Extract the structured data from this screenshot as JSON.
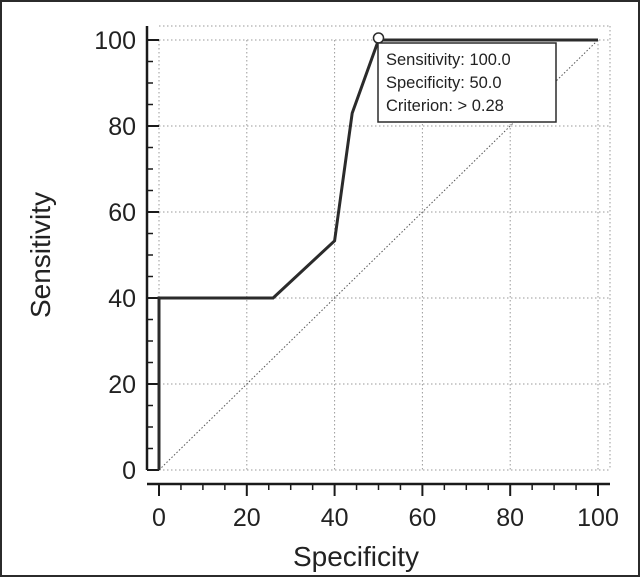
{
  "chart_data": {
    "type": "line",
    "xlabel": "Specificity",
    "ylabel": "Sensitivity",
    "xlim": [
      0,
      100
    ],
    "ylim": [
      0,
      100
    ],
    "x_ticks": [
      0,
      20,
      40,
      60,
      80,
      100
    ],
    "y_ticks": [
      0,
      20,
      40,
      60,
      80,
      100
    ],
    "grid": true,
    "series": [
      {
        "points": [
          {
            "x": 0,
            "y": 0
          },
          {
            "x": 0,
            "y": 40
          },
          {
            "x": 26,
            "y": 40
          },
          {
            "x": 40,
            "y": 53.3
          },
          {
            "x": 44,
            "y": 83
          },
          {
            "x": 50,
            "y": 100
          },
          {
            "x": 100,
            "y": 100
          }
        ]
      }
    ],
    "reference_line": {
      "from": {
        "x": 0,
        "y": 0
      },
      "to": {
        "x": 100,
        "y": 100
      },
      "style": "dotted"
    },
    "highlight_point": {
      "x": 50,
      "y": 100
    },
    "tooltip": {
      "lines": [
        "Sensitivity: 100.0",
        "Specificity: 50.0",
        "Criterion: > 0.28"
      ]
    },
    "colors": {
      "curve": "#2b2b2b",
      "grid": "#9a9a9a",
      "axis": "#1a1a1a",
      "reference": "#555555"
    }
  }
}
